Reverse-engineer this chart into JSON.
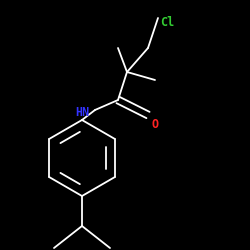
{
  "background_color": "#000000",
  "bond_color": "#ffffff",
  "cl_color": "#33cc33",
  "o_color": "#ff2222",
  "nh_color": "#3333ff",
  "cl_label": "Cl",
  "o_label": "O",
  "nh_label": "HN",
  "linewidth": 1.3,
  "figsize": [
    2.5,
    2.5
  ],
  "dpi": 100,
  "font_size": 8.5,
  "xlim": [
    0,
    250
  ],
  "ylim": [
    0,
    250
  ]
}
